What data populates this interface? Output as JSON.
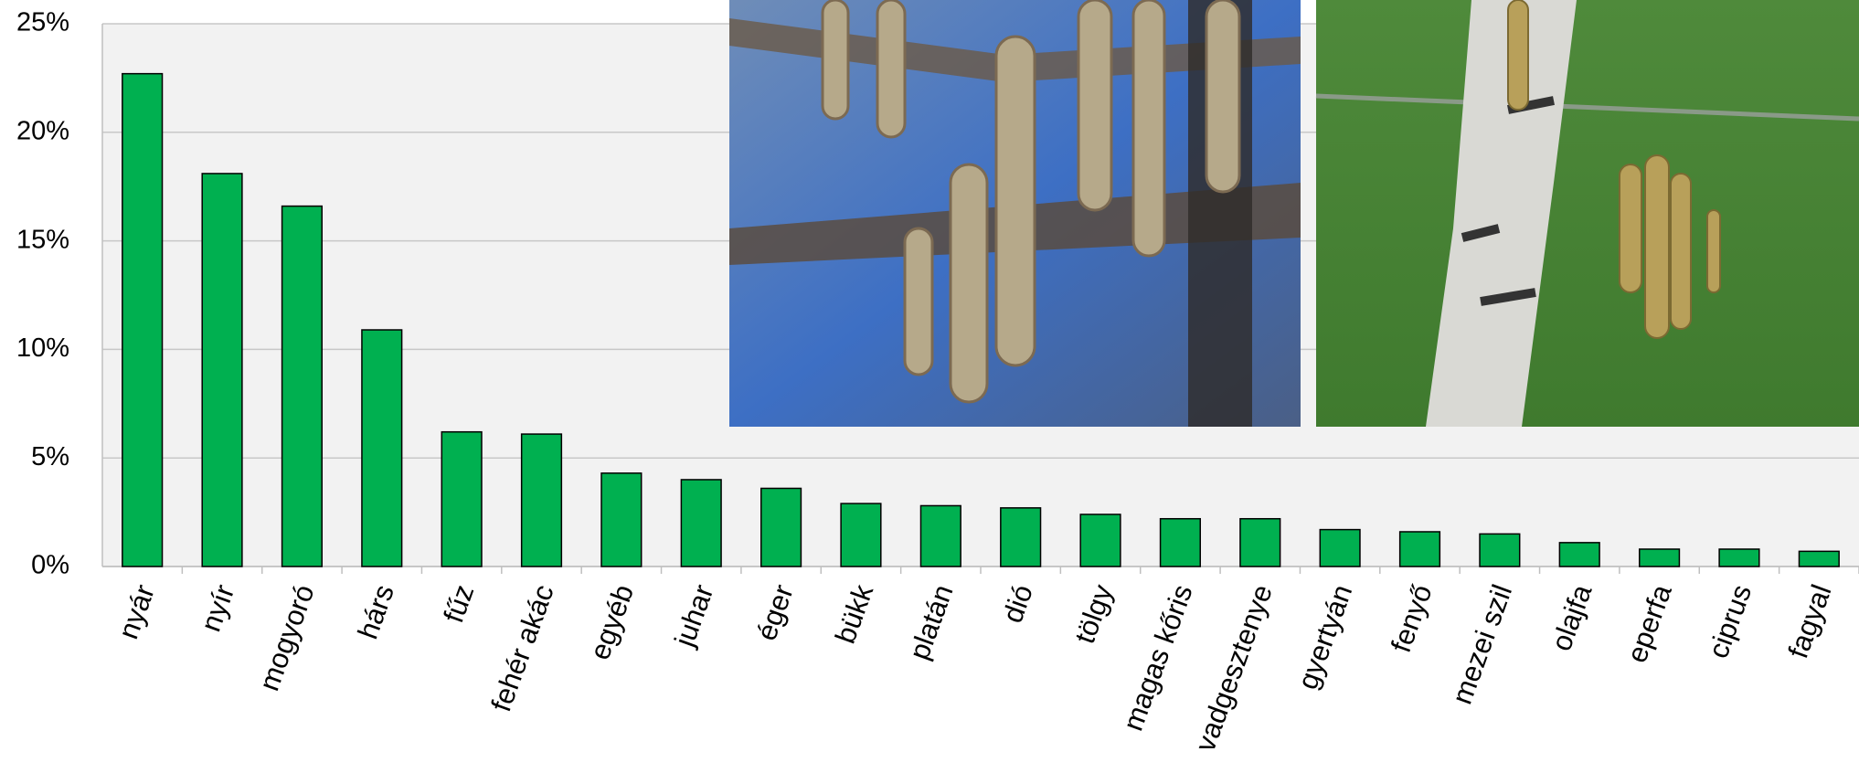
{
  "chart_data": {
    "type": "bar",
    "categories": [
      "nyár",
      "nyír",
      "mogyoró",
      "hárs",
      "fűz",
      "fehér akác",
      "egyéb",
      "juhar",
      "éger",
      "bükk",
      "platán",
      "dió",
      "tölgy",
      "magas kőris",
      "vadgesztenye",
      "gyertyán",
      "fenyő",
      "mezei szil",
      "olajfa",
      "eperfa",
      "ciprus",
      "fagyal"
    ],
    "values": [
      22.7,
      18.1,
      16.6,
      10.9,
      6.2,
      6.1,
      4.3,
      4.0,
      3.6,
      2.9,
      2.8,
      2.7,
      2.4,
      2.2,
      2.2,
      1.7,
      1.6,
      1.5,
      1.1,
      0.8,
      0.8,
      0.7
    ],
    "color": "#00b050",
    "ylim": [
      0,
      25
    ],
    "yticks": [
      {
        "value": 0,
        "label": "0%"
      },
      {
        "value": 5,
        "label": "5%"
      },
      {
        "value": 10,
        "label": "10%"
      },
      {
        "value": 15,
        "label": "15%"
      },
      {
        "value": 20,
        "label": "20%"
      },
      {
        "value": 25,
        "label": "25%"
      }
    ],
    "grid": true
  }
}
